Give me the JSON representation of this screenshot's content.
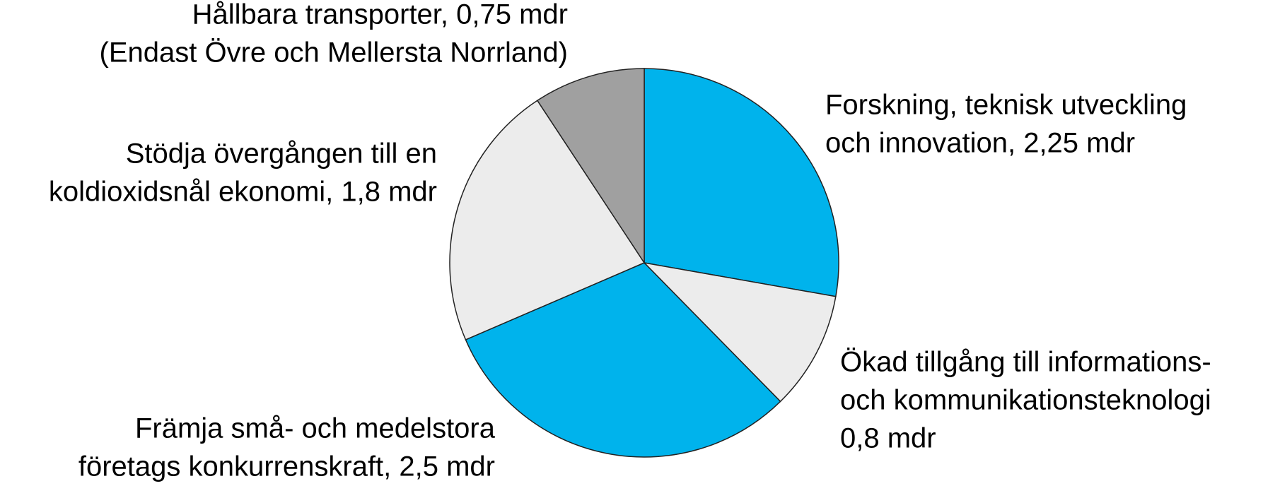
{
  "chart_data": {
    "type": "pie",
    "categories": [
      [
        "Forskning, teknisk utveckling",
        "och innovation, 2,25 mdr"
      ],
      [
        "Ökad tillgång till informations-",
        "och kommunikationsteknologi",
        "0,8 mdr"
      ],
      [
        "Främja små- och medelstora",
        "företags konkurrenskraft, 2,5 mdr"
      ],
      [
        "Stödja övergången till en",
        "koldioxidsnål ekonomi, 1,8 mdr"
      ],
      [
        "Hållbara transporter, 0,75 mdr",
        "(Endast Övre och Mellersta Norrland)"
      ]
    ],
    "values": [
      2.25,
      0.8,
      2.5,
      1.8,
      0.75
    ],
    "colors": [
      "#00b3ec",
      "#ececec",
      "#00b3ec",
      "#ececec",
      "#a0a0a0"
    ]
  }
}
